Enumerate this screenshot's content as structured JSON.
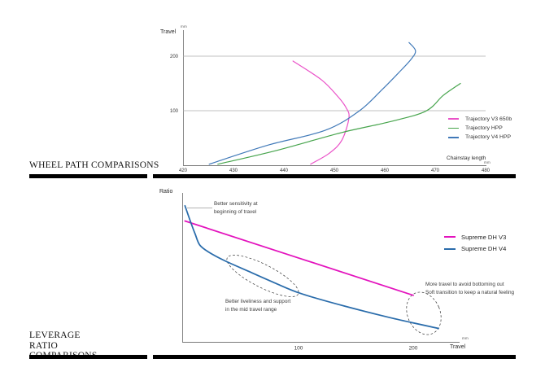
{
  "sections": [
    {
      "title": "WHEEL PATH COMPARISONS"
    },
    {
      "title": "LEVERAGE RATIO COMPARISONS"
    }
  ],
  "colors": {
    "trajectory_v3": "#ea52c8",
    "trajectory_hpp": "#46a44c",
    "trajectory_v4": "#4079b8",
    "supreme_v3": "#e313bd",
    "supreme_v4": "#2a6cab",
    "grid": "#ababab",
    "axis": "#777777",
    "divider_bar": "#000000"
  },
  "chart_data": [
    {
      "type": "line",
      "title": "Wheel Path Comparisons",
      "xlabel": "Chainstay length",
      "x_unit": "mm",
      "ylabel": "Travel",
      "y_unit": "mm",
      "xlim": [
        420,
        480
      ],
      "ylim": [
        0,
        248
      ],
      "xticks": [
        420,
        430,
        440,
        450,
        460,
        470,
        480
      ],
      "yticks": [
        100,
        200
      ],
      "grid": "horizontal",
      "legend_position": "right",
      "series": [
        {
          "name": "Trajectory V3 650b",
          "color": "#ea52c8",
          "points": [
            [
              445.3,
              2
            ],
            [
              449.0,
              22
            ],
            [
              451.5,
              46
            ],
            [
              452.9,
              87
            ],
            [
              452.3,
              106
            ],
            [
              450.6,
              127
            ],
            [
              447.4,
              157
            ],
            [
              441.8,
              191
            ]
          ]
        },
        {
          "name": "Trajectory HPP",
          "color": "#46a44c",
          "points": [
            [
              426.9,
              2
            ],
            [
              438.5,
              27
            ],
            [
              451.5,
              60
            ],
            [
              461.1,
              80
            ],
            [
              468.1,
              99
            ],
            [
              471.6,
              128
            ],
            [
              475.0,
              150
            ]
          ]
        },
        {
          "name": "Trajectory V4 HPP",
          "color": "#4079b8",
          "points": [
            [
              425.2,
              2
            ],
            [
              436.9,
              37
            ],
            [
              448.2,
              64
            ],
            [
              455.0,
              100
            ],
            [
              459.5,
              139
            ],
            [
              462.7,
              169
            ],
            [
              465.2,
              194
            ],
            [
              466.1,
              210
            ],
            [
              464.8,
              225
            ]
          ]
        }
      ]
    },
    {
      "type": "line",
      "title": "Leverage Ratio Comparisons",
      "xlabel": "Travel",
      "x_unit": "mm",
      "ylabel": "Ratio",
      "y_unit": "",
      "xlim": [
        0,
        240
      ],
      "ylim": [
        2.0,
        3.66
      ],
      "xticks": [
        100,
        200
      ],
      "yticks": [],
      "grid": "off",
      "legend_position": "right",
      "series": [
        {
          "name": "Supreme DH V3",
          "color": "#e313bd",
          "points": [
            [
              1,
              3.35
            ],
            [
              200,
              2.52
            ]
          ]
        },
        {
          "name": "Supreme DH V4",
          "color": "#2a6cab",
          "points": [
            [
              1,
              3.52
            ],
            [
              4,
              3.41
            ],
            [
              7,
              3.3
            ],
            [
              10,
              3.2
            ],
            [
              14,
              3.08
            ],
            [
              22,
              3.0
            ],
            [
              35,
              2.91
            ],
            [
              56,
              2.79
            ],
            [
              79,
              2.66
            ],
            [
              102,
              2.54
            ],
            [
              140,
              2.4
            ],
            [
              180,
              2.27
            ],
            [
              222,
              2.15
            ]
          ]
        }
      ],
      "annotations": [
        {
          "text": "Better sensitivity at\nbeginning of travel"
        },
        {
          "text": "Better liveliness and support\nin the mid travel range"
        },
        {
          "text": "More travel to avoid bottoming out\nSoft transition to keep a natural feeling"
        }
      ]
    }
  ]
}
